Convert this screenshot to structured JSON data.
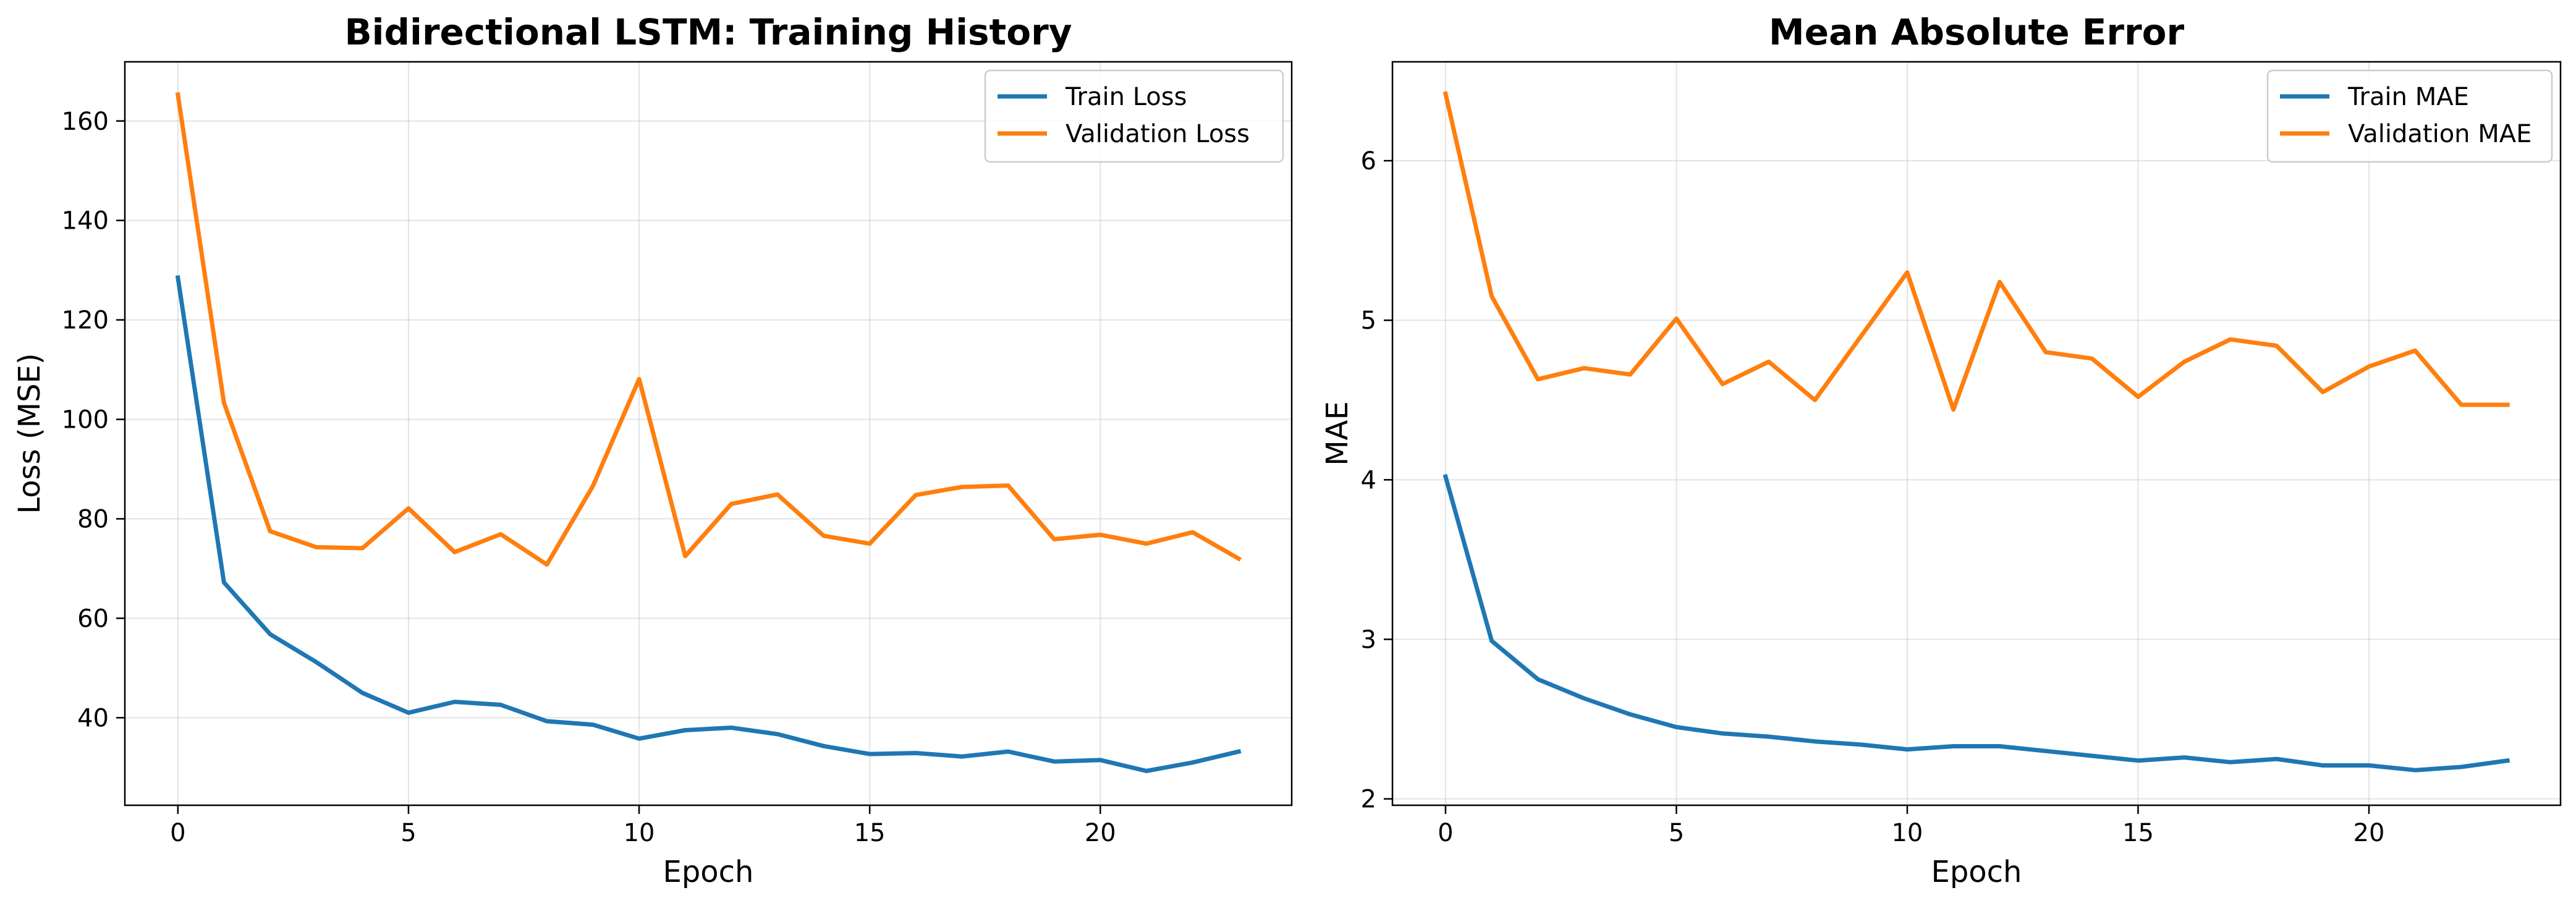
{
  "chart_data": [
    {
      "type": "line",
      "title": "Bidirectional LSTM: Training History",
      "xlabel": "Epoch",
      "ylabel": "Loss (MSE)",
      "xlim": [
        -1.15,
        24.15
      ],
      "ylim": [
        22.4,
        171.9
      ],
      "xticks": [
        0,
        5,
        10,
        15,
        20
      ],
      "yticks": [
        40,
        60,
        80,
        100,
        120,
        140,
        160
      ],
      "grid": true,
      "legend_position": "top-right",
      "x": [
        0,
        1,
        2,
        3,
        4,
        5,
        6,
        7,
        8,
        9,
        10,
        11,
        12,
        13,
        14,
        15,
        16,
        17,
        18,
        19,
        20,
        21,
        22,
        23
      ],
      "series": [
        {
          "name": "Train Loss",
          "color": "#1f77b4",
          "values": [
            128.5,
            67.2,
            56.8,
            51.2,
            45.0,
            41.0,
            43.2,
            42.6,
            39.3,
            38.6,
            35.8,
            37.5,
            38.0,
            36.7,
            34.3,
            32.7,
            32.9,
            32.2,
            33.2,
            31.2,
            31.5,
            29.3,
            31.0,
            33.2
          ]
        },
        {
          "name": "Validation Loss",
          "color": "#ff7f0e",
          "values": [
            165.3,
            103.3,
            77.5,
            74.3,
            74.1,
            82.1,
            73.3,
            76.9,
            70.8,
            86.6,
            108.1,
            72.5,
            83.0,
            84.9,
            76.6,
            75.0,
            84.8,
            86.4,
            86.7,
            75.9,
            76.8,
            75.0,
            77.3,
            72.0
          ]
        }
      ]
    },
    {
      "type": "line",
      "title": "Mean Absolute Error",
      "xlabel": "Epoch",
      "ylabel": "MAE",
      "xlim": [
        -1.15,
        24.15
      ],
      "ylim": [
        1.96,
        6.62
      ],
      "xticks": [
        0,
        5,
        10,
        15,
        20
      ],
      "yticks": [
        2,
        3,
        4,
        5,
        6
      ],
      "grid": true,
      "legend_position": "top-right",
      "x": [
        0,
        1,
        2,
        3,
        4,
        5,
        6,
        7,
        8,
        9,
        10,
        11,
        12,
        13,
        14,
        15,
        16,
        17,
        18,
        19,
        20,
        21,
        22,
        23
      ],
      "series": [
        {
          "name": "Train MAE",
          "color": "#1f77b4",
          "values": [
            4.02,
            2.99,
            2.75,
            2.63,
            2.53,
            2.45,
            2.41,
            2.39,
            2.36,
            2.34,
            2.31,
            2.33,
            2.33,
            2.3,
            2.27,
            2.24,
            2.26,
            2.23,
            2.25,
            2.21,
            2.21,
            2.18,
            2.2,
            2.24
          ]
        },
        {
          "name": "Validation MAE",
          "color": "#ff7f0e",
          "values": [
            6.42,
            5.15,
            4.63,
            4.7,
            4.66,
            5.01,
            4.6,
            4.74,
            4.5,
            4.9,
            5.3,
            4.44,
            5.24,
            4.8,
            4.76,
            4.52,
            4.74,
            4.88,
            4.84,
            4.55,
            4.71,
            4.81,
            4.47,
            4.47
          ]
        }
      ]
    }
  ]
}
